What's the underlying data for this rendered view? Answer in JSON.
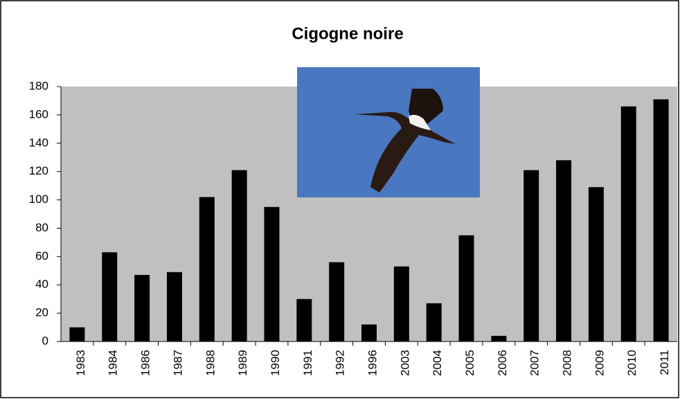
{
  "chart_data": {
    "type": "bar",
    "title": "Cigogne noire",
    "categories": [
      "1983",
      "1984",
      "1986",
      "1987",
      "1988",
      "1989",
      "1990",
      "1991",
      "1992",
      "1996",
      "2003",
      "2004",
      "2005",
      "2006",
      "2007",
      "2008",
      "2009",
      "2010",
      "2011"
    ],
    "values": [
      10,
      63,
      47,
      49,
      102,
      121,
      95,
      30,
      56,
      12,
      53,
      27,
      75,
      4,
      121,
      128,
      109,
      166,
      171
    ],
    "color": "#000000",
    "ylim": [
      0,
      180
    ],
    "yticks": [
      0,
      20,
      40,
      60,
      80,
      100,
      120,
      140,
      160,
      180
    ],
    "grid": false
  }
}
